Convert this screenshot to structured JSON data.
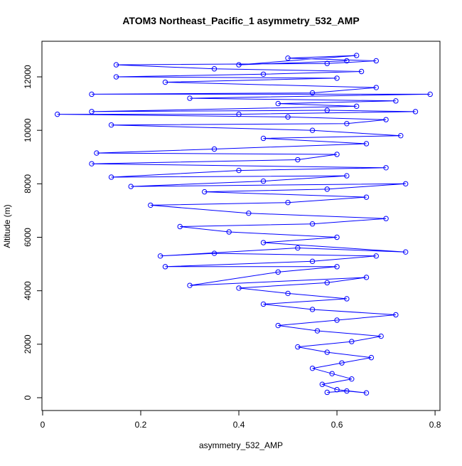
{
  "chart_data": {
    "type": "line",
    "title": "ATOM3 Northeast_Pacific_1 asymmetry_532_AMP",
    "x_label": "asymmetry_532_AMP",
    "y_label": "Altitude (m)",
    "color": "#0000ff",
    "x": [
      0.58,
      0.62,
      0.66,
      0.6,
      0.57,
      0.63,
      0.59,
      0.55,
      0.61,
      0.67,
      0.58,
      0.52,
      0.63,
      0.69,
      0.56,
      0.48,
      0.6,
      0.72,
      0.55,
      0.45,
      0.62,
      0.5,
      0.4,
      0.58,
      0.66,
      0.3,
      0.48,
      0.6,
      0.25,
      0.55,
      0.68,
      0.35,
      0.24,
      0.52,
      0.74,
      0.45,
      0.6,
      0.38,
      0.28,
      0.55,
      0.7,
      0.42,
      0.22,
      0.5,
      0.66,
      0.33,
      0.58,
      0.74,
      0.18,
      0.45,
      0.62,
      0.14,
      0.4,
      0.7,
      0.1,
      0.52,
      0.6,
      0.11,
      0.35,
      0.66,
      0.45,
      0.73,
      0.55,
      0.14,
      0.62,
      0.7,
      0.5,
      0.03,
      0.4,
      0.76,
      0.58,
      0.1,
      0.64,
      0.48,
      0.72,
      0.3,
      0.79,
      0.1,
      0.55,
      0.68,
      0.25,
      0.6,
      0.15,
      0.45,
      0.65,
      0.35,
      0.15,
      0.58,
      0.68,
      0.5,
      0.64,
      0.4,
      0.62
    ],
    "values": [
      200,
      250,
      180,
      300,
      500,
      700,
      900,
      1100,
      1300,
      1500,
      1700,
      1900,
      2100,
      2300,
      2500,
      2700,
      2900,
      3100,
      3300,
      3500,
      3700,
      3900,
      4100,
      4300,
      4500,
      4200,
      4700,
      4900,
      4900,
      5100,
      5300,
      5400,
      5300,
      5600,
      5450,
      5800,
      6000,
      6200,
      6400,
      6500,
      6700,
      6900,
      7200,
      7300,
      7500,
      7700,
      7800,
      8000,
      7900,
      8100,
      8300,
      8250,
      8500,
      8600,
      8750,
      8900,
      9100,
      9150,
      9300,
      9500,
      9700,
      9800,
      10000,
      10200,
      10250,
      10400,
      10500,
      10600,
      10600,
      10700,
      10750,
      10700,
      10900,
      11000,
      11100,
      11200,
      11350,
      11350,
      11400,
      11600,
      11800,
      11950,
      12000,
      12100,
      12200,
      12300,
      12450,
      12500,
      12600,
      12700,
      12800,
      12450,
      12600
    ],
    "xlim": [
      -0.0014,
      0.81
    ],
    "ylim": [
      -479,
      13331
    ],
    "xticks": [
      0.0,
      0.2,
      0.4,
      0.6,
      0.8
    ],
    "yticks": [
      0,
      2000,
      4000,
      6000,
      8000,
      10000,
      12000
    ]
  }
}
